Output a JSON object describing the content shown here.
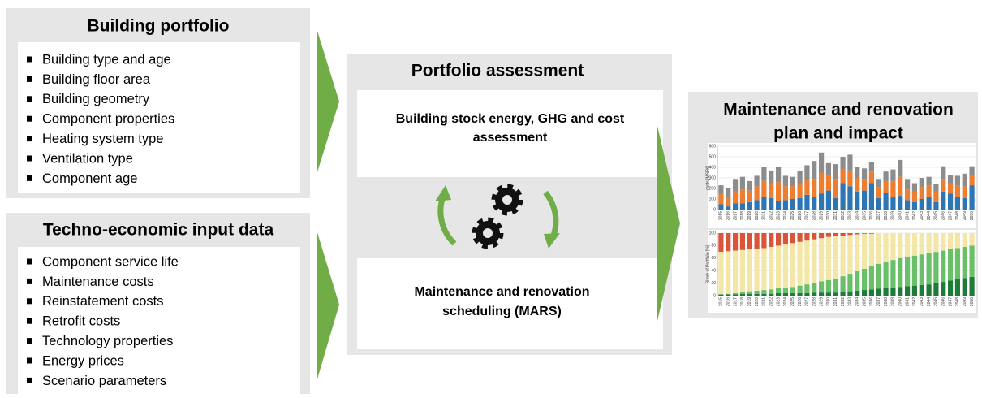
{
  "building_portfolio": {
    "title": "Building portfolio",
    "items": [
      "Building type and age",
      "Building floor area",
      "Building geometry",
      "Component properties",
      "Heating system type",
      "Ventilation type",
      "Component age"
    ]
  },
  "input_data": {
    "title": "Techno-economic input data",
    "items": [
      "Component service life",
      "Maintenance costs",
      "Reinstatement costs",
      "Retrofit costs",
      "Technology properties",
      "Energy prices",
      "Scenario parameters"
    ]
  },
  "portfolio_assessment": {
    "title": "Portfolio assessment",
    "assessment": "Building stock energy, GHG and cost assessment",
    "scheduling": "Maintenance and renovation scheduling (MARS)"
  },
  "plan": {
    "title_line1": "Maintenance and renovation",
    "title_line2": "plan and impact",
    "charts": [
      {
        "type": "bar",
        "stacked": true,
        "ylabel": "costs [MSEK]",
        "ylim": [
          0,
          600
        ],
        "yticks": [
          0,
          100,
          200,
          300,
          400,
          500,
          600
        ],
        "categories": [
          "2015",
          "2016",
          "2017",
          "2018",
          "2019",
          "2020",
          "2021",
          "2022",
          "2023",
          "2024",
          "2025",
          "2026",
          "2027",
          "2028",
          "2029",
          "2030",
          "2031",
          "2032",
          "2033",
          "2034",
          "2035",
          "2036",
          "2037",
          "2038",
          "2039",
          "2040",
          "2041",
          "2042",
          "2043",
          "2044",
          "2045",
          "2046",
          "2047",
          "2048",
          "2049",
          "2050"
        ],
        "series": [
          {
            "color": "#2e75b6",
            "values": [
              50,
              30,
              60,
              60,
              70,
              90,
              120,
              110,
              80,
              90,
              100,
              110,
              140,
              120,
              150,
              180,
              110,
              250,
              220,
              170,
              180,
              250,
              110,
              160,
              120,
              130,
              90,
              70,
              100,
              120,
              70,
              170,
              150,
              120,
              110,
              230
            ]
          },
          {
            "color": "#ed7d31",
            "values": [
              100,
              90,
              110,
              130,
              110,
              130,
              150,
              140,
              180,
              130,
              120,
              140,
              140,
              170,
              200,
              150,
              180,
              130,
              150,
              130,
              110,
              110,
              100,
              110,
              150,
              180,
              100,
              100,
              110,
              110,
              100,
              120,
              100,
              110,
              110,
              100
            ]
          },
          {
            "color": "#8c8c8c",
            "values": [
              80,
              80,
              120,
              120,
              90,
              100,
              130,
              120,
              140,
              100,
              90,
              120,
              140,
              170,
              190,
              110,
              140,
              120,
              150,
              100,
              100,
              90,
              80,
              90,
              110,
              160,
              100,
              80,
              90,
              80,
              70,
              120,
              80,
              90,
              120,
              80
            ]
          }
        ]
      },
      {
        "type": "bar",
        "stacked": true,
        "ylabel": "Share of Portfolio [%]",
        "ylim": [
          0,
          100
        ],
        "yticks": [
          0,
          20,
          40,
          60,
          80,
          100
        ],
        "categories": [
          "2015",
          "2016",
          "2017",
          "2018",
          "2019",
          "2020",
          "2021",
          "2022",
          "2023",
          "2024",
          "2025",
          "2026",
          "2027",
          "2028",
          "2029",
          "2030",
          "2031",
          "2032",
          "2033",
          "2034",
          "2035",
          "2036",
          "2037",
          "2038",
          "2039",
          "2040",
          "2041",
          "2042",
          "2043",
          "2044",
          "2045",
          "2046",
          "2047",
          "2048",
          "2049",
          "2050"
        ],
        "series": [
          {
            "color": "#1e7b3a",
            "values": [
              2,
              2,
              2,
              3,
              3,
              3,
              3,
              3,
              4,
              4,
              4,
              4,
              4,
              5,
              5,
              5,
              5,
              6,
              7,
              8,
              9,
              10,
              11,
              12,
              13,
              14,
              15,
              16,
              17,
              18,
              20,
              22,
              24,
              26,
              28,
              30
            ]
          },
          {
            "color": "#6abf69",
            "values": [
              0,
              1,
              2,
              3,
              4,
              5,
              6,
              7,
              8,
              9,
              10,
              12,
              14,
              16,
              18,
              20,
              22,
              25,
              28,
              31,
              34,
              37,
              40,
              42,
              44,
              46,
              47,
              48,
              49,
              50,
              50,
              50,
              50,
              50,
              50,
              50
            ]
          },
          {
            "color": "#f3e6a6",
            "values": [
              68,
              68,
              68,
              67,
              67,
              67,
              67,
              68,
              68,
              69,
              70,
              70,
              70,
              69,
              69,
              69,
              68,
              65,
              62,
              59,
              56,
              52,
              49,
              46,
              43,
              40,
              38,
              36,
              34,
              32,
              30,
              28,
              26,
              24,
              22,
              20
            ]
          },
          {
            "color": "#d9553a",
            "values": [
              30,
              29,
              28,
              27,
              26,
              25,
              24,
              22,
              20,
              18,
              16,
              14,
              12,
              10,
              8,
              6,
              5,
              4,
              3,
              2,
              1,
              1,
              0,
              0,
              0,
              0,
              0,
              0,
              0,
              0,
              0,
              0,
              0,
              0,
              0,
              0
            ]
          }
        ]
      }
    ]
  }
}
